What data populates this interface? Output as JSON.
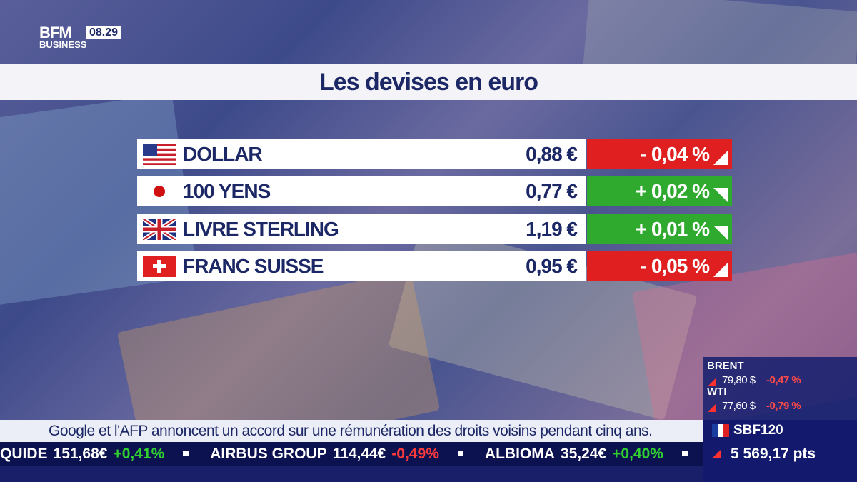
{
  "header": {
    "logo": "BFM",
    "logo_sub": "BUSINESS",
    "time": "08.29"
  },
  "title": "Les devises en euro",
  "table": {
    "rows": [
      {
        "name": "DOLLAR",
        "price": "0,88 €",
        "change": "- 0,04 %",
        "color": "#e02020",
        "flag": "us"
      },
      {
        "name": "100 YENS",
        "price": "0,77 €",
        "change": "+ 0,02 %",
        "color": "#2faa2f",
        "flag": "jp"
      },
      {
        "name": "LIVRE STERLING",
        "price": "1,19 €",
        "change": "+ 0,01 %",
        "color": "#2faa2f",
        "flag": "gb"
      },
      {
        "name": "FRANC SUISSE",
        "price": "0,95 €",
        "change": "- 0,05 %",
        "color": "#e02020",
        "flag": "ch"
      }
    ]
  },
  "commodities": [
    {
      "name": "BRENT",
      "price": "79,80 $",
      "change": "-0,47 %"
    },
    {
      "name": "WTI",
      "price": "77,60 $",
      "change": "-0,79 %"
    }
  ],
  "headline": "Google et l'AFP annoncent un accord sur une rémunération des droits voisins pendant cinq ans.",
  "ticker": [
    {
      "name": "QUIDE",
      "price": "151,68€",
      "change": "+0,41%",
      "color": "#2fd02f"
    },
    {
      "name": "AIRBUS GROUP",
      "price": "114,44€",
      "change": "-0,49%",
      "color": "#ff3a3a"
    },
    {
      "name": "ALBIOMA",
      "price": "35,24€",
      "change": "+0,40%",
      "color": "#2fd02f"
    }
  ],
  "index": {
    "name": "SBF120",
    "value": "5 569,17 pts"
  }
}
